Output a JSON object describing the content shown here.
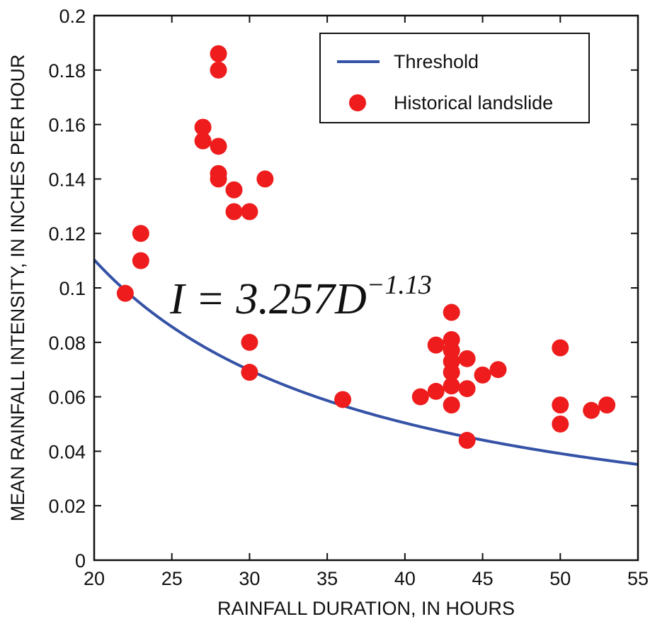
{
  "chart_data": {
    "type": "scatter",
    "xlabel": "RAINFALL DURATION, IN HOURS",
    "ylabel": "MEAN RAINFALL INTENSITY, IN INCHES PER HOUR",
    "xlim": [
      20,
      55
    ],
    "ylim": [
      0,
      0.2
    ],
    "xticks": [
      "20",
      "25",
      "30",
      "35",
      "40",
      "45",
      "50",
      "55"
    ],
    "yticks": [
      "0",
      "0.02",
      "0.04",
      "0.06",
      "0.08",
      "0.1",
      "0.12",
      "0.14",
      "0.16",
      "0.18",
      "0.2"
    ],
    "grid": false,
    "legend_position": "top-right",
    "annotation": {
      "base": "I = 3.257D",
      "exponent": "−1.13"
    },
    "series": [
      {
        "name": "Threshold",
        "type": "line",
        "color": "#3552a6",
        "equation": {
          "coefficient": 3.257,
          "exponent": -1.13
        },
        "x_range": [
          20,
          55
        ]
      },
      {
        "name": "Historical landslide",
        "type": "scatter",
        "color": "#ee1c1c",
        "points": [
          {
            "x": 22,
            "y": 0.098
          },
          {
            "x": 23,
            "y": 0.12
          },
          {
            "x": 23,
            "y": 0.11
          },
          {
            "x": 27,
            "y": 0.159
          },
          {
            "x": 27,
            "y": 0.154
          },
          {
            "x": 28,
            "y": 0.186
          },
          {
            "x": 28,
            "y": 0.18
          },
          {
            "x": 28,
            "y": 0.152
          },
          {
            "x": 28,
            "y": 0.142
          },
          {
            "x": 28,
            "y": 0.14
          },
          {
            "x": 29,
            "y": 0.136
          },
          {
            "x": 29,
            "y": 0.128
          },
          {
            "x": 30,
            "y": 0.128
          },
          {
            "x": 31,
            "y": 0.14
          },
          {
            "x": 30,
            "y": 0.08
          },
          {
            "x": 30,
            "y": 0.069
          },
          {
            "x": 36,
            "y": 0.059
          },
          {
            "x": 41,
            "y": 0.06
          },
          {
            "x": 42,
            "y": 0.062
          },
          {
            "x": 42,
            "y": 0.079
          },
          {
            "x": 43,
            "y": 0.091
          },
          {
            "x": 43,
            "y": 0.081
          },
          {
            "x": 43,
            "y": 0.077
          },
          {
            "x": 43,
            "y": 0.073
          },
          {
            "x": 43,
            "y": 0.069
          },
          {
            "x": 43,
            "y": 0.064
          },
          {
            "x": 43,
            "y": 0.057
          },
          {
            "x": 44,
            "y": 0.074
          },
          {
            "x": 44,
            "y": 0.063
          },
          {
            "x": 44,
            "y": 0.044
          },
          {
            "x": 45,
            "y": 0.068
          },
          {
            "x": 46,
            "y": 0.07
          },
          {
            "x": 50,
            "y": 0.078
          },
          {
            "x": 50,
            "y": 0.057
          },
          {
            "x": 50,
            "y": 0.05
          },
          {
            "x": 52,
            "y": 0.055
          },
          {
            "x": 53,
            "y": 0.057
          }
        ]
      }
    ]
  }
}
